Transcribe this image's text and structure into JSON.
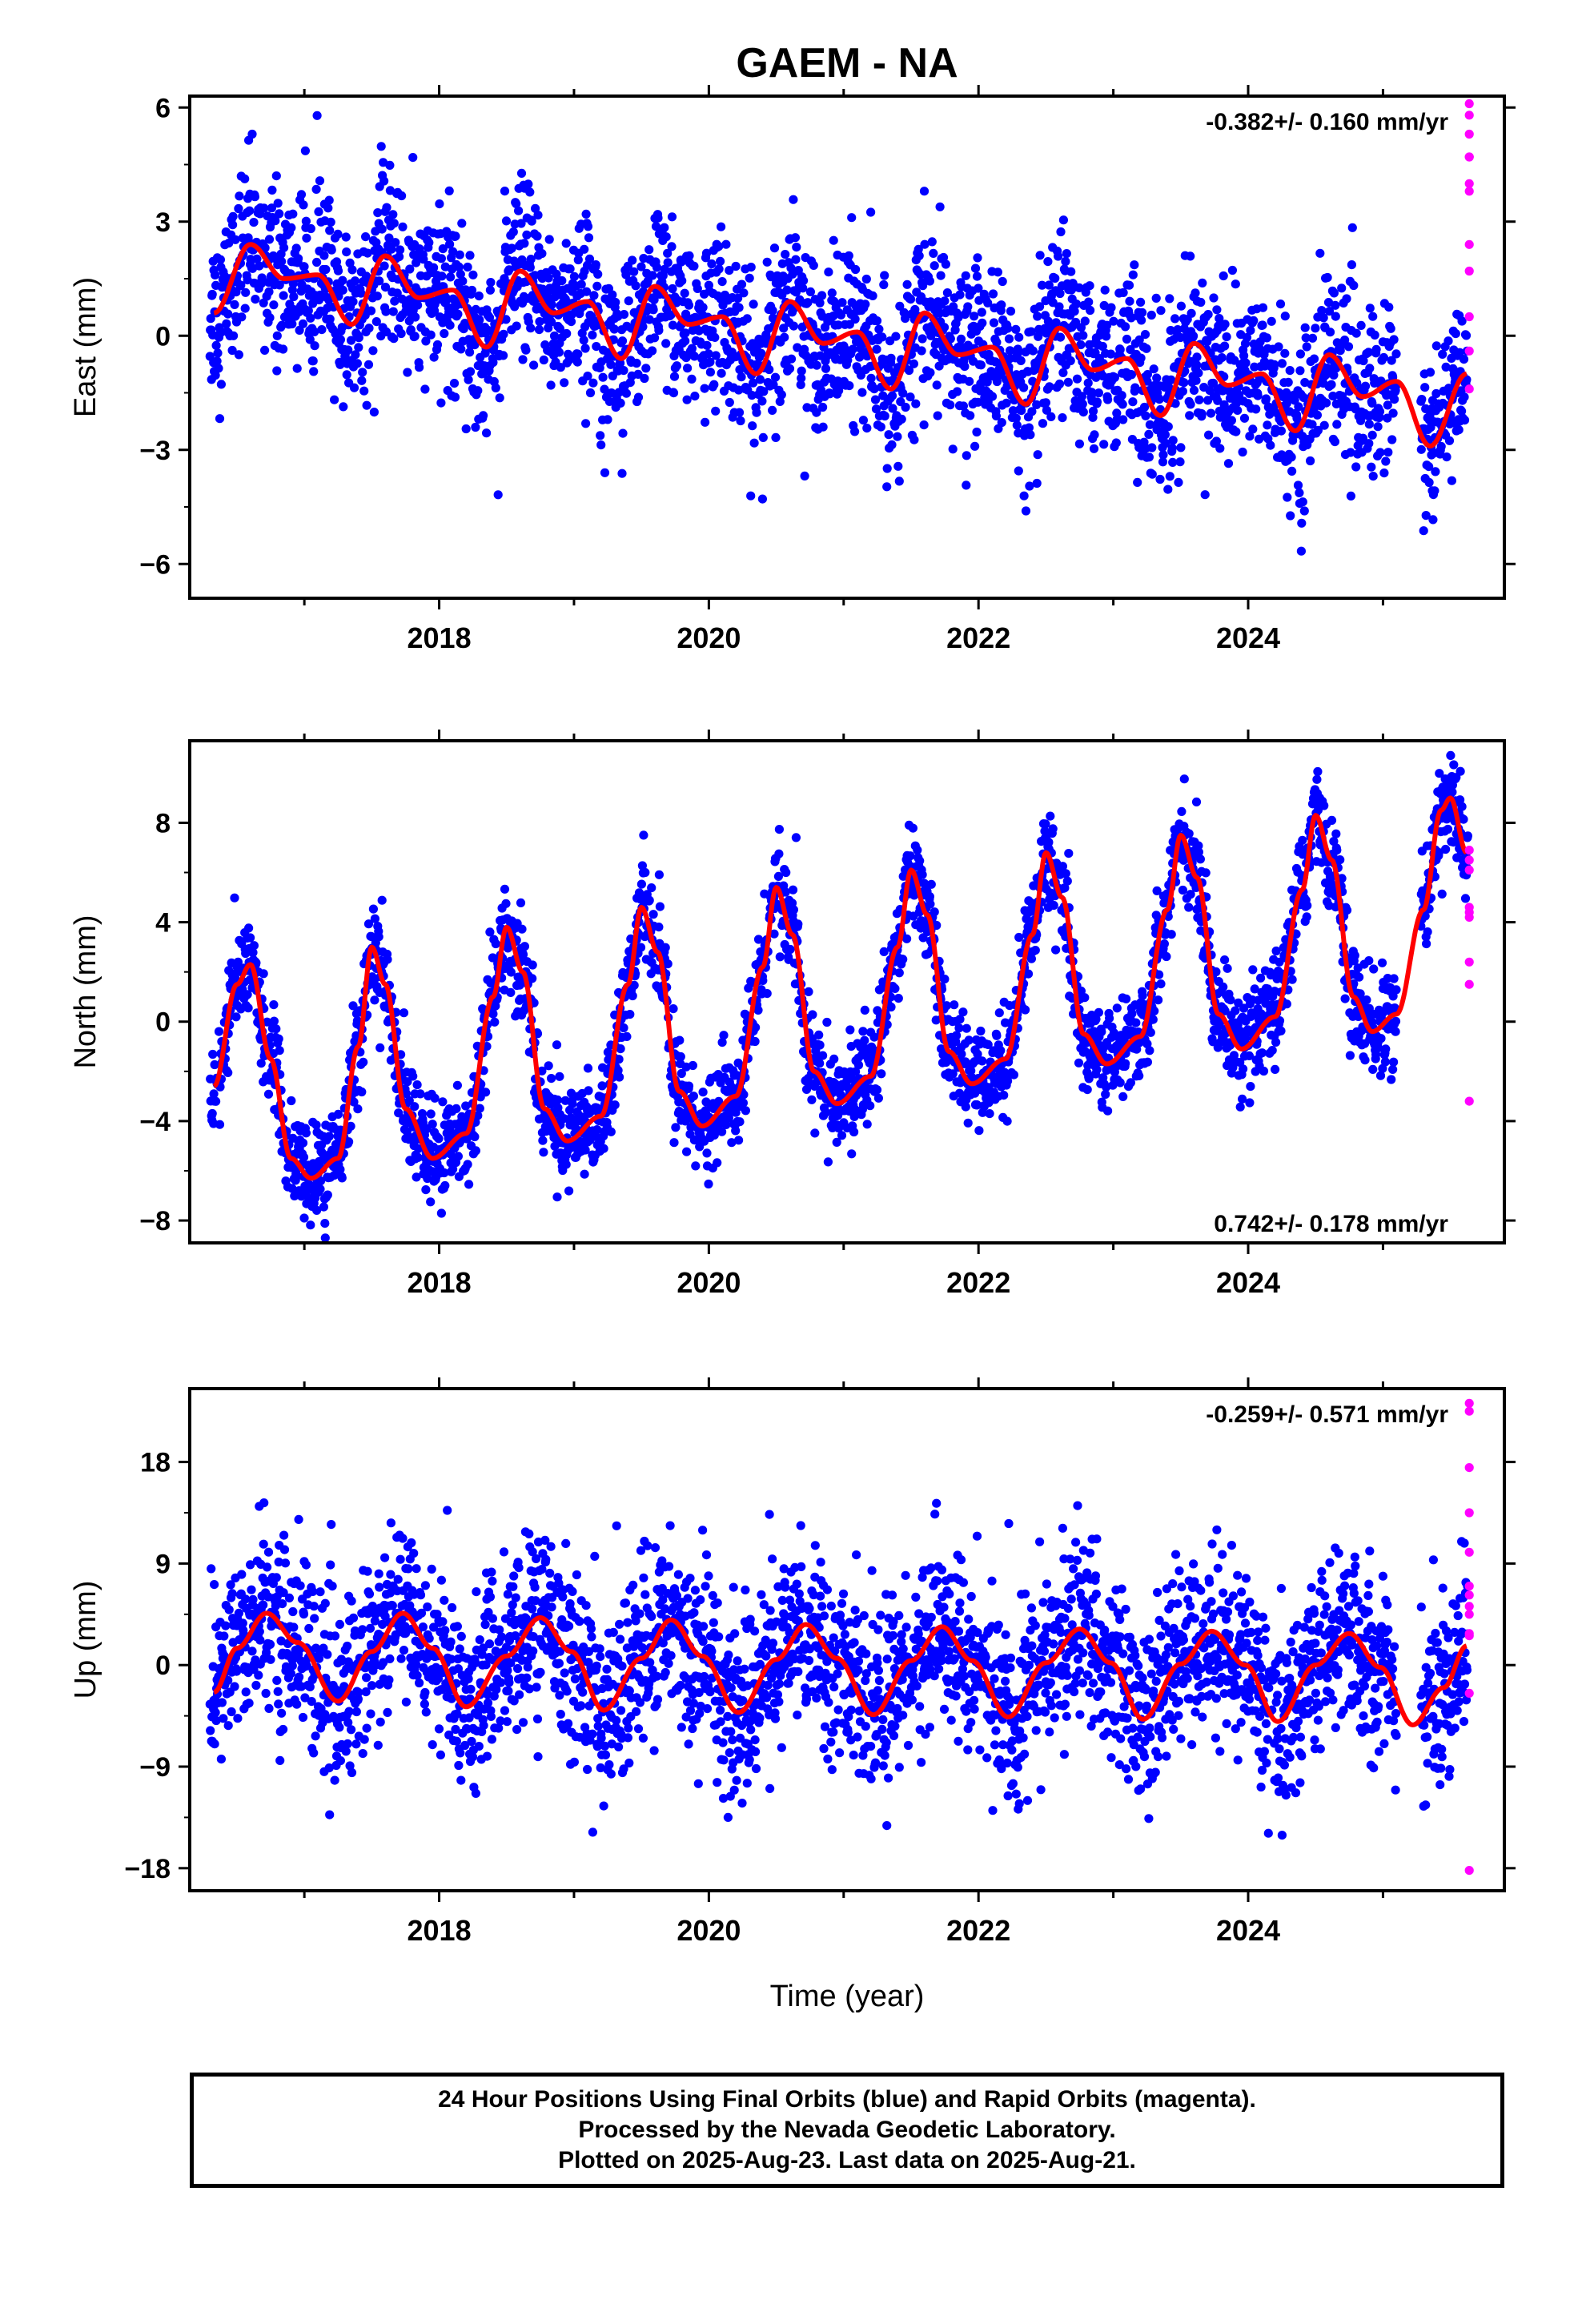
{
  "title": "GAEM - NA",
  "xlabel": "Time (year)",
  "footer": {
    "line1": "24 Hour Positions Using Final Orbits (blue) and Rapid Orbits (magenta).",
    "line2": "Processed by the Nevada Geodetic Laboratory.",
    "line3": "Plotted on 2025-Aug-23. Last data on 2025-Aug-21."
  },
  "colors": {
    "final": "#0000ff",
    "rapid": "#ff00ff",
    "model": "#ff0000",
    "frame": "#000000"
  },
  "chart_data": [
    {
      "type": "scatter",
      "panel": "east",
      "ylabel": "East (mm)",
      "rate": "-0.382+/- 0.160 mm/yr",
      "rate_position": "top-right",
      "xlim": [
        2016.15,
        2025.9
      ],
      "ylim": [
        -6.9,
        6.3
      ],
      "yticks": [
        6,
        3,
        0,
        -3,
        -6
      ],
      "ytick_labels": [
        "6",
        "3",
        "0",
        "−3",
        "−6"
      ],
      "xticks": [
        2018,
        2020,
        2022,
        2024
      ],
      "xtick_labels": [
        "2018",
        "2020",
        "2022",
        "2024"
      ],
      "data_span": [
        2016.3,
        2025.64
      ],
      "gap": [
        2025.1,
        2025.28
      ],
      "model": {
        "rate": -0.382,
        "offset": 1.9,
        "t0": 2016.3,
        "annual_amp": 0.9,
        "annual_phase": 0.55,
        "semi_amp": 0.55,
        "semi_phase": 0.2
      },
      "scatter_sd": 1.1,
      "model_points": [
        [
          2016.33,
          0.6
        ],
        [
          2016.6,
          2.4
        ],
        [
          2016.85,
          1.5
        ],
        [
          2017.1,
          1.6
        ],
        [
          2017.35,
          0.3
        ],
        [
          2017.6,
          2.1
        ],
        [
          2017.85,
          1.0
        ],
        [
          2018.1,
          1.2
        ],
        [
          2018.35,
          -0.3
        ],
        [
          2018.6,
          1.7
        ],
        [
          2018.85,
          0.6
        ],
        [
          2019.1,
          0.9
        ],
        [
          2019.35,
          -0.6
        ],
        [
          2019.6,
          1.3
        ],
        [
          2019.85,
          0.3
        ],
        [
          2020.1,
          0.5
        ],
        [
          2020.35,
          -1.0
        ],
        [
          2020.6,
          0.9
        ],
        [
          2020.85,
          -0.2
        ],
        [
          2021.1,
          0.1
        ],
        [
          2021.35,
          -1.4
        ],
        [
          2021.6,
          0.6
        ],
        [
          2021.85,
          -0.5
        ],
        [
          2022.1,
          -0.3
        ],
        [
          2022.35,
          -1.8
        ],
        [
          2022.6,
          0.2
        ],
        [
          2022.85,
          -0.9
        ],
        [
          2023.1,
          -0.6
        ],
        [
          2023.35,
          -2.1
        ],
        [
          2023.6,
          -0.2
        ],
        [
          2023.85,
          -1.3
        ],
        [
          2024.1,
          -1.0
        ],
        [
          2024.35,
          -2.5
        ],
        [
          2024.6,
          -0.5
        ],
        [
          2024.85,
          -1.6
        ],
        [
          2025.1,
          -1.2
        ],
        [
          2025.35,
          -2.9
        ],
        [
          2025.62,
          -1.0
        ]
      ],
      "rapid_points": [
        [
          2025.64,
          6.1
        ],
        [
          2025.64,
          5.8
        ],
        [
          2025.64,
          5.3
        ],
        [
          2025.64,
          4.7
        ],
        [
          2025.64,
          4.7
        ],
        [
          2025.64,
          4.0
        ],
        [
          2025.64,
          3.8
        ],
        [
          2025.64,
          2.4
        ],
        [
          2025.64,
          1.7
        ],
        [
          2025.64,
          0.5
        ],
        [
          2025.64,
          -0.4
        ],
        [
          2025.64,
          -1.4
        ]
      ]
    },
    {
      "type": "scatter",
      "panel": "north",
      "ylabel": "North (mm)",
      "rate": "0.742+/- 0.178 mm/yr",
      "rate_position": "bottom-right",
      "xlim": [
        2016.15,
        2025.9
      ],
      "ylim": [
        -8.9,
        11.3
      ],
      "yticks": [
        8,
        4,
        0,
        -4,
        -8
      ],
      "ytick_labels": [
        "8",
        "4",
        "0",
        "−4",
        "−8"
      ],
      "xticks": [
        2018,
        2020,
        2022,
        2024
      ],
      "xtick_labels": [
        "2018",
        "2020",
        "2022",
        "2024"
      ],
      "data_span": [
        2016.3,
        2025.64
      ],
      "gap": [
        2025.1,
        2025.28
      ],
      "scatter_sd": 1.0,
      "model_points": [
        [
          2016.33,
          -2.6
        ],
        [
          2016.5,
          1.5
        ],
        [
          2016.6,
          2.3
        ],
        [
          2016.75,
          -1.5
        ],
        [
          2016.9,
          -5.5
        ],
        [
          2017.05,
          -6.3
        ],
        [
          2017.25,
          -5.5
        ],
        [
          2017.4,
          -1.0
        ],
        [
          2017.5,
          3.0
        ],
        [
          2017.6,
          1.5
        ],
        [
          2017.75,
          -3.5
        ],
        [
          2017.95,
          -5.5
        ],
        [
          2018.2,
          -4.5
        ],
        [
          2018.4,
          1.0
        ],
        [
          2018.5,
          3.8
        ],
        [
          2018.62,
          2.0
        ],
        [
          2018.78,
          -3.5
        ],
        [
          2018.95,
          -4.8
        ],
        [
          2019.2,
          -3.8
        ],
        [
          2019.4,
          1.5
        ],
        [
          2019.5,
          4.6
        ],
        [
          2019.62,
          2.8
        ],
        [
          2019.78,
          -2.8
        ],
        [
          2019.95,
          -4.2
        ],
        [
          2020.2,
          -3.0
        ],
        [
          2020.4,
          2.2
        ],
        [
          2020.5,
          5.4
        ],
        [
          2020.62,
          3.5
        ],
        [
          2020.78,
          -2.0
        ],
        [
          2020.95,
          -3.3
        ],
        [
          2021.2,
          -2.2
        ],
        [
          2021.4,
          3.0
        ],
        [
          2021.5,
          6.1
        ],
        [
          2021.62,
          4.3
        ],
        [
          2021.78,
          -1.2
        ],
        [
          2021.95,
          -2.5
        ],
        [
          2022.2,
          -1.5
        ],
        [
          2022.4,
          3.5
        ],
        [
          2022.5,
          6.8
        ],
        [
          2022.62,
          5.0
        ],
        [
          2022.78,
          -0.5
        ],
        [
          2022.95,
          -1.7
        ],
        [
          2023.2,
          -0.6
        ],
        [
          2023.4,
          4.5
        ],
        [
          2023.5,
          7.5
        ],
        [
          2023.62,
          5.8
        ],
        [
          2023.78,
          0.3
        ],
        [
          2023.95,
          -1.1
        ],
        [
          2024.2,
          0.2
        ],
        [
          2024.4,
          5.3
        ],
        [
          2024.5,
          8.3
        ],
        [
          2024.62,
          6.5
        ],
        [
          2024.78,
          1.0
        ],
        [
          2024.92,
          -0.4
        ],
        [
          2025.1,
          0.3
        ],
        [
          2025.3,
          4.5
        ],
        [
          2025.43,
          8.5
        ],
        [
          2025.5,
          9.0
        ],
        [
          2025.62,
          6.8
        ]
      ],
      "rapid_points": [
        [
          2025.64,
          6.9
        ],
        [
          2025.64,
          6.5
        ],
        [
          2025.64,
          6.1
        ],
        [
          2025.64,
          4.6
        ],
        [
          2025.64,
          4.2
        ],
        [
          2025.64,
          4.4
        ],
        [
          2025.64,
          2.4
        ],
        [
          2025.64,
          1.5
        ],
        [
          2025.64,
          -3.2
        ]
      ]
    },
    {
      "type": "scatter",
      "panel": "up",
      "ylabel": "Up (mm)",
      "rate": "-0.259+/- 0.571 mm/yr",
      "rate_position": "top-right",
      "xlim": [
        2016.15,
        2025.9
      ],
      "ylim": [
        -20,
        24.5
      ],
      "yticks": [
        18,
        9,
        0,
        -9,
        -18
      ],
      "ytick_labels": [
        "18",
        "9",
        "0",
        "−9",
        "−18"
      ],
      "xticks": [
        2018,
        2020,
        2022,
        2024
      ],
      "xtick_labels": [
        "2018",
        "2020",
        "2022",
        "2024"
      ],
      "data_span": [
        2016.3,
        2025.64
      ],
      "gap": [
        2025.1,
        2025.28
      ],
      "scatter_sd": 4.0,
      "model_points": [
        [
          2016.33,
          -2.4
        ],
        [
          2016.5,
          1.5
        ],
        [
          2016.72,
          4.6
        ],
        [
          2016.95,
          2.0
        ],
        [
          2017.25,
          -3.2
        ],
        [
          2017.5,
          1.2
        ],
        [
          2017.73,
          4.6
        ],
        [
          2017.95,
          1.5
        ],
        [
          2018.2,
          -3.7
        ],
        [
          2018.5,
          0.8
        ],
        [
          2018.75,
          4.2
        ],
        [
          2018.98,
          1.2
        ],
        [
          2019.22,
          -4.0
        ],
        [
          2019.5,
          0.6
        ],
        [
          2019.72,
          4.0
        ],
        [
          2019.95,
          0.8
        ],
        [
          2020.22,
          -4.2
        ],
        [
          2020.5,
          0.5
        ],
        [
          2020.72,
          3.6
        ],
        [
          2020.95,
          0.6
        ],
        [
          2021.22,
          -4.4
        ],
        [
          2021.5,
          0.4
        ],
        [
          2021.73,
          3.4
        ],
        [
          2021.95,
          0.4
        ],
        [
          2022.22,
          -4.6
        ],
        [
          2022.5,
          0.2
        ],
        [
          2022.75,
          3.2
        ],
        [
          2022.98,
          0.2
        ],
        [
          2023.22,
          -4.8
        ],
        [
          2023.5,
          0.1
        ],
        [
          2023.73,
          3.0
        ],
        [
          2023.98,
          0.0
        ],
        [
          2024.22,
          -5.0
        ],
        [
          2024.5,
          0.0
        ],
        [
          2024.75,
          2.8
        ],
        [
          2024.98,
          -0.2
        ],
        [
          2025.22,
          -5.3
        ],
        [
          2025.45,
          -2.0
        ],
        [
          2025.62,
          1.7
        ]
      ],
      "rapid_points": [
        [
          2025.64,
          23.2
        ],
        [
          2025.64,
          22.5
        ],
        [
          2025.64,
          17.5
        ],
        [
          2025.64,
          13.5
        ],
        [
          2025.64,
          10.0
        ],
        [
          2025.64,
          7.0
        ],
        [
          2025.64,
          6.2
        ],
        [
          2025.64,
          5.2
        ],
        [
          2025.64,
          4.5
        ],
        [
          2025.64,
          2.8
        ],
        [
          2025.64,
          2.6
        ],
        [
          2025.64,
          -2.5
        ],
        [
          2025.64,
          -18.2
        ]
      ]
    }
  ]
}
